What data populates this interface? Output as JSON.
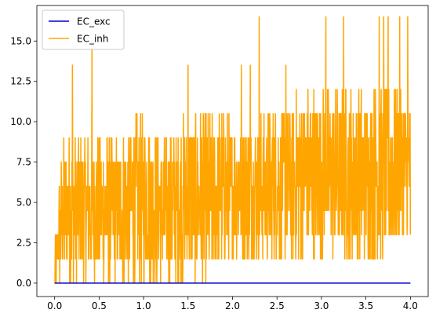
{
  "chart_data": {
    "type": "line",
    "title": "",
    "xlabel": "",
    "ylabel": "",
    "xlim": [
      -0.2,
      4.2
    ],
    "ylim": [
      -0.83,
      17.2
    ],
    "xticks": [
      0.0,
      0.5,
      1.0,
      1.5,
      2.0,
      2.5,
      3.0,
      3.5,
      4.0
    ],
    "xtick_labels": [
      "0.0",
      "0.5",
      "1.0",
      "1.5",
      "2.0",
      "2.5",
      "3.0",
      "3.5",
      "4.0"
    ],
    "yticks": [
      0.0,
      2.5,
      5.0,
      7.5,
      10.0,
      12.5,
      15.0
    ],
    "ytick_labels": [
      "0.0",
      "2.5",
      "5.0",
      "7.5",
      "10.0",
      "12.5",
      "15.0"
    ],
    "grid": false,
    "legend": {
      "location": "upper-left"
    },
    "series": [
      {
        "name": "EC_exc",
        "color": "#0000cd",
        "x": [
          0.0,
          4.0
        ],
        "y": [
          0.0,
          0.0
        ]
      },
      {
        "name": "EC_inh",
        "color": "#ffa500",
        "x_start": 0.0,
        "x_end": 4.0,
        "envelope_x": [
          0.0,
          0.05,
          0.1,
          0.2,
          0.3,
          0.4,
          0.5,
          0.75,
          1.0,
          1.25,
          1.5,
          1.75,
          2.0,
          2.25,
          2.5,
          2.75,
          3.0,
          3.25,
          3.5,
          3.75,
          4.0
        ],
        "envelope_low": [
          0.0,
          0.0,
          0.0,
          0.0,
          0.0,
          0.0,
          0.0,
          0.0,
          0.0,
          0.0,
          0.0,
          0.0,
          1.5,
          1.5,
          1.5,
          1.5,
          1.5,
          1.5,
          1.5,
          1.5,
          3.0
        ],
        "envelope_high": [
          1.5,
          6.0,
          9.0,
          9.0,
          9.0,
          9.0,
          9.0,
          9.0,
          10.5,
          9.0,
          10.5,
          10.5,
          10.5,
          10.5,
          10.5,
          12.0,
          12.0,
          12.0,
          12.0,
          12.0,
          12.0
        ],
        "notable_peaks": [
          {
            "x": 0.2,
            "y": 13.5
          },
          {
            "x": 0.42,
            "y": 15.0
          },
          {
            "x": 1.5,
            "y": 13.5
          },
          {
            "x": 2.1,
            "y": 13.5
          },
          {
            "x": 2.2,
            "y": 13.5
          },
          {
            "x": 2.3,
            "y": 16.5
          },
          {
            "x": 2.6,
            "y": 13.5
          },
          {
            "x": 3.05,
            "y": 16.5
          },
          {
            "x": 3.25,
            "y": 16.5
          },
          {
            "x": 3.65,
            "y": 16.5
          },
          {
            "x": 3.7,
            "y": 16.5
          },
          {
            "x": 3.75,
            "y": 16.5
          },
          {
            "x": 3.88,
            "y": 16.5
          },
          {
            "x": 3.97,
            "y": 16.5
          }
        ]
      }
    ]
  }
}
